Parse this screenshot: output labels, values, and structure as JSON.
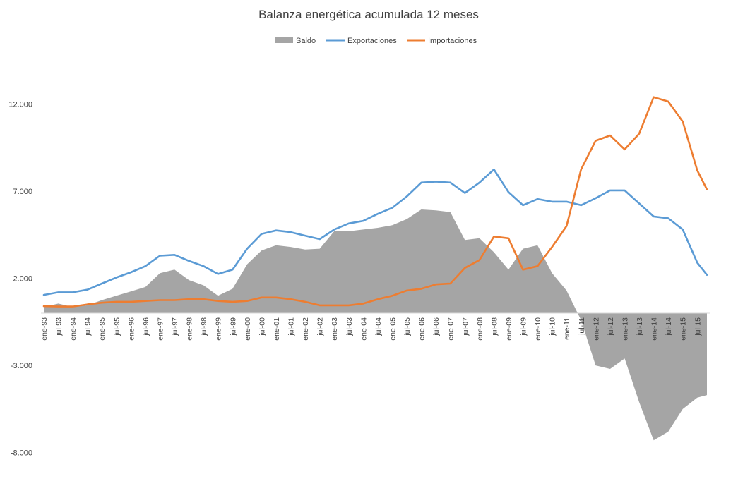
{
  "chart_data": {
    "type": "line",
    "title": "Balanza energética acumulada 12 meses",
    "xlabel": "",
    "ylabel": "",
    "ylim": [
      -8000,
      12000
    ],
    "y_ticks": [
      "12.000",
      "7.000",
      "2.000",
      "-3.000",
      "-8.000"
    ],
    "y_tick_values": [
      12000,
      7000,
      2000,
      -3000,
      -8000
    ],
    "x_tick_labels": [
      "ene-93",
      "jul-93",
      "ene-94",
      "jul-94",
      "ene-95",
      "jul-95",
      "ene-96",
      "jul-96",
      "ene-97",
      "jul-97",
      "ene-98",
      "jul-98",
      "ene-99",
      "jul-99",
      "ene-00",
      "jul-00",
      "ene-01",
      "jul-01",
      "ene-02",
      "jul-02",
      "ene-03",
      "jul-03",
      "ene-04",
      "jul-04",
      "ene-05",
      "jul-05",
      "ene-06",
      "jul-06",
      "ene-07",
      "jul-07",
      "ene-08",
      "jul-08",
      "ene-09",
      "jul-09",
      "ene-10",
      "jul-10",
      "ene-11",
      "jul-11",
      "ene-12",
      "jul-12",
      "ene-13",
      "jul-13",
      "ene-14",
      "jul-14",
      "ene-15",
      "jul-15"
    ],
    "grid": false,
    "legend_position": "top-center",
    "x_unit": "month",
    "x_range": [
      "ene-93",
      "nov-15"
    ],
    "series": [
      {
        "name": "Saldo",
        "kind": "area",
        "color": "#a5a5a5",
        "points": [
          [
            "ene-93",
            350
          ],
          [
            "jul-93",
            550
          ],
          [
            "ene-94",
            350
          ],
          [
            "jul-94",
            450
          ],
          [
            "ene-95",
            750
          ],
          [
            "jul-95",
            1000
          ],
          [
            "ene-96",
            1250
          ],
          [
            "jul-96",
            1500
          ],
          [
            "ene-97",
            2300
          ],
          [
            "jul-97",
            2500
          ],
          [
            "ene-98",
            1900
          ],
          [
            "jul-98",
            1600
          ],
          [
            "ene-99",
            1000
          ],
          [
            "jul-99",
            1400
          ],
          [
            "ene-00",
            2800
          ],
          [
            "jul-00",
            3600
          ],
          [
            "ene-01",
            3900
          ],
          [
            "jul-01",
            3800
          ],
          [
            "ene-02",
            3650
          ],
          [
            "jul-02",
            3700
          ],
          [
            "ene-03",
            4700
          ],
          [
            "jul-03",
            4700
          ],
          [
            "ene-04",
            4800
          ],
          [
            "jul-04",
            4900
          ],
          [
            "ene-05",
            5050
          ],
          [
            "jul-05",
            5400
          ],
          [
            "ene-06",
            5950
          ],
          [
            "jul-06",
            5900
          ],
          [
            "ene-07",
            5800
          ],
          [
            "jul-07",
            4200
          ],
          [
            "ene-08",
            4300
          ],
          [
            "jul-08",
            3500
          ],
          [
            "ene-09",
            2500
          ],
          [
            "jul-09",
            3700
          ],
          [
            "ene-10",
            3900
          ],
          [
            "jul-10",
            2300
          ],
          [
            "ene-11",
            1300
          ],
          [
            "jul-11",
            -400
          ],
          [
            "ene-12",
            -3000
          ],
          [
            "jul-12",
            -3200
          ],
          [
            "ene-13",
            -2600
          ],
          [
            "jul-13",
            -5100
          ],
          [
            "ene-14",
            -7300
          ],
          [
            "jul-14",
            -6800
          ],
          [
            "ene-15",
            -5500
          ],
          [
            "jul-15",
            -4850
          ],
          [
            "nov-15",
            -4700
          ]
        ]
      },
      {
        "name": "Exportaciones",
        "kind": "line",
        "color": "#5b9bd5",
        "points": [
          [
            "ene-93",
            1050
          ],
          [
            "jul-93",
            1200
          ],
          [
            "ene-94",
            1200
          ],
          [
            "jul-94",
            1350
          ],
          [
            "ene-95",
            1700
          ],
          [
            "jul-95",
            2050
          ],
          [
            "ene-96",
            2350
          ],
          [
            "jul-96",
            2700
          ],
          [
            "ene-97",
            3300
          ],
          [
            "jul-97",
            3350
          ],
          [
            "ene-98",
            3000
          ],
          [
            "jul-98",
            2700
          ],
          [
            "ene-99",
            2250
          ],
          [
            "jul-99",
            2500
          ],
          [
            "ene-00",
            3700
          ],
          [
            "jul-00",
            4550
          ],
          [
            "ene-01",
            4750
          ],
          [
            "jul-01",
            4650
          ],
          [
            "ene-02",
            4450
          ],
          [
            "jul-02",
            4250
          ],
          [
            "ene-03",
            4800
          ],
          [
            "jul-03",
            5150
          ],
          [
            "ene-04",
            5300
          ],
          [
            "jul-04",
            5700
          ],
          [
            "ene-05",
            6050
          ],
          [
            "jul-05",
            6700
          ],
          [
            "ene-06",
            7500
          ],
          [
            "jul-06",
            7550
          ],
          [
            "ene-07",
            7500
          ],
          [
            "jul-07",
            6900
          ],
          [
            "ene-08",
            7500
          ],
          [
            "jul-08",
            8250
          ],
          [
            "ene-09",
            6950
          ],
          [
            "jul-09",
            6200
          ],
          [
            "ene-10",
            6550
          ],
          [
            "jul-10",
            6400
          ],
          [
            "ene-11",
            6400
          ],
          [
            "jul-11",
            6200
          ],
          [
            "ene-12",
            6600
          ],
          [
            "jul-12",
            7050
          ],
          [
            "ene-13",
            7050
          ],
          [
            "jul-13",
            6300
          ],
          [
            "ene-14",
            5550
          ],
          [
            "jul-14",
            5450
          ],
          [
            "ene-15",
            4800
          ],
          [
            "jul-15",
            2900
          ],
          [
            "nov-15",
            2200
          ]
        ]
      },
      {
        "name": "Importaciones",
        "kind": "line",
        "color": "#ed7d31",
        "points": [
          [
            "ene-93",
            400
          ],
          [
            "jul-93",
            380
          ],
          [
            "ene-94",
            380
          ],
          [
            "jul-94",
            500
          ],
          [
            "ene-95",
            600
          ],
          [
            "jul-95",
            650
          ],
          [
            "ene-96",
            650
          ],
          [
            "jul-96",
            700
          ],
          [
            "ene-97",
            750
          ],
          [
            "jul-97",
            750
          ],
          [
            "ene-98",
            800
          ],
          [
            "jul-98",
            800
          ],
          [
            "ene-99",
            700
          ],
          [
            "jul-99",
            650
          ],
          [
            "ene-00",
            700
          ],
          [
            "jul-00",
            900
          ],
          [
            "ene-01",
            900
          ],
          [
            "jul-01",
            800
          ],
          [
            "ene-02",
            650
          ],
          [
            "jul-02",
            450
          ],
          [
            "ene-03",
            450
          ],
          [
            "jul-03",
            450
          ],
          [
            "ene-04",
            550
          ],
          [
            "jul-04",
            800
          ],
          [
            "ene-05",
            1000
          ],
          [
            "jul-05",
            1300
          ],
          [
            "ene-06",
            1400
          ],
          [
            "jul-06",
            1650
          ],
          [
            "ene-07",
            1700
          ],
          [
            "jul-07",
            2600
          ],
          [
            "ene-08",
            3050
          ],
          [
            "jul-08",
            4400
          ],
          [
            "ene-09",
            4300
          ],
          [
            "jul-09",
            2500
          ],
          [
            "ene-10",
            2700
          ],
          [
            "jul-10",
            3800
          ],
          [
            "ene-11",
            5000
          ],
          [
            "jul-11",
            8250
          ],
          [
            "ene-12",
            9900
          ],
          [
            "jul-12",
            10200
          ],
          [
            "ene-13",
            9400
          ],
          [
            "jul-13",
            10300
          ],
          [
            "ene-14",
            12400
          ],
          [
            "jul-14",
            12150
          ],
          [
            "ene-15",
            11000
          ],
          [
            "jul-15",
            8200
          ],
          [
            "nov-15",
            7100
          ]
        ]
      }
    ]
  }
}
